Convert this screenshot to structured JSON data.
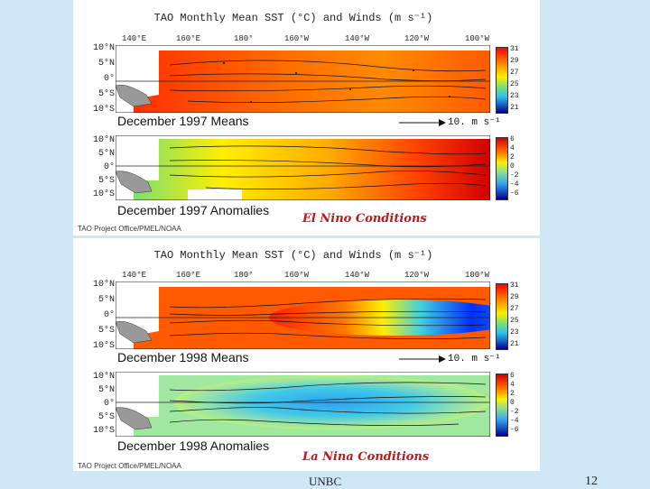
{
  "slide": {
    "footer_left": "UNBC",
    "page_number": "12"
  },
  "panels": [
    {
      "title": "TAO Monthly Mean SST (°C) and Winds (m s⁻¹)",
      "lon_labels": [
        "140°E",
        "160°E",
        "180°",
        "160°W",
        "140°W",
        "120°W",
        "100°W"
      ],
      "lat_labels": [
        "10°N",
        "5°N",
        "0°",
        "5°S",
        "10°S"
      ],
      "means_caption": "December 1997 Means",
      "ref_vector": "10. m s⁻¹",
      "sst_colorbar": [
        "31",
        "29",
        "27",
        "25",
        "23",
        "21"
      ],
      "anomaly_lat_labels": [
        "10°N",
        "5°N",
        "0°",
        "5°S",
        "10°S"
      ],
      "anomaly_caption": "December 1997 Anomalies",
      "anomaly_colorbar": [
        "6",
        "4",
        "2",
        "0",
        "-2",
        "-4",
        "-6"
      ],
      "condition": "El Nino Conditions",
      "credit": "TAO Project Office/PMEL/NOAA",
      "sst_colors": [
        "#ff0000",
        "#ff6a00",
        "#ffb000",
        "#ffee00",
        "#b8f040",
        "#40d0e0",
        "#2a60e8",
        "#0000a0"
      ],
      "anomaly_colors": [
        "#d00000",
        "#ff5000",
        "#ffaa00",
        "#ffff40",
        "#70e0a0",
        "#40b0f0",
        "#0030ff",
        "#000090"
      ]
    },
    {
      "title": "TAO Monthly Mean SST (°C) and Winds (m s⁻¹)",
      "lon_labels": [
        "140°E",
        "160°E",
        "180°",
        "160°W",
        "140°W",
        "120°W",
        "100°W"
      ],
      "lat_labels": [
        "10°N",
        "5°N",
        "0°",
        "5°S",
        "10°S"
      ],
      "means_caption": "December 1998 Means",
      "ref_vector": "10. m s⁻¹",
      "sst_colorbar": [
        "31",
        "29",
        "27",
        "25",
        "23",
        "21"
      ],
      "anomaly_lat_labels": [
        "10°N",
        "5°N",
        "0°",
        "5°S",
        "10°S"
      ],
      "anomaly_caption": "December 1998 Anomalies",
      "anomaly_colorbar": [
        "6",
        "4",
        "2",
        "0",
        "-2",
        "-4",
        "-6"
      ],
      "condition": "La Nina Conditions",
      "credit": "TAO Project Office/PMEL/NOAA"
    }
  ]
}
